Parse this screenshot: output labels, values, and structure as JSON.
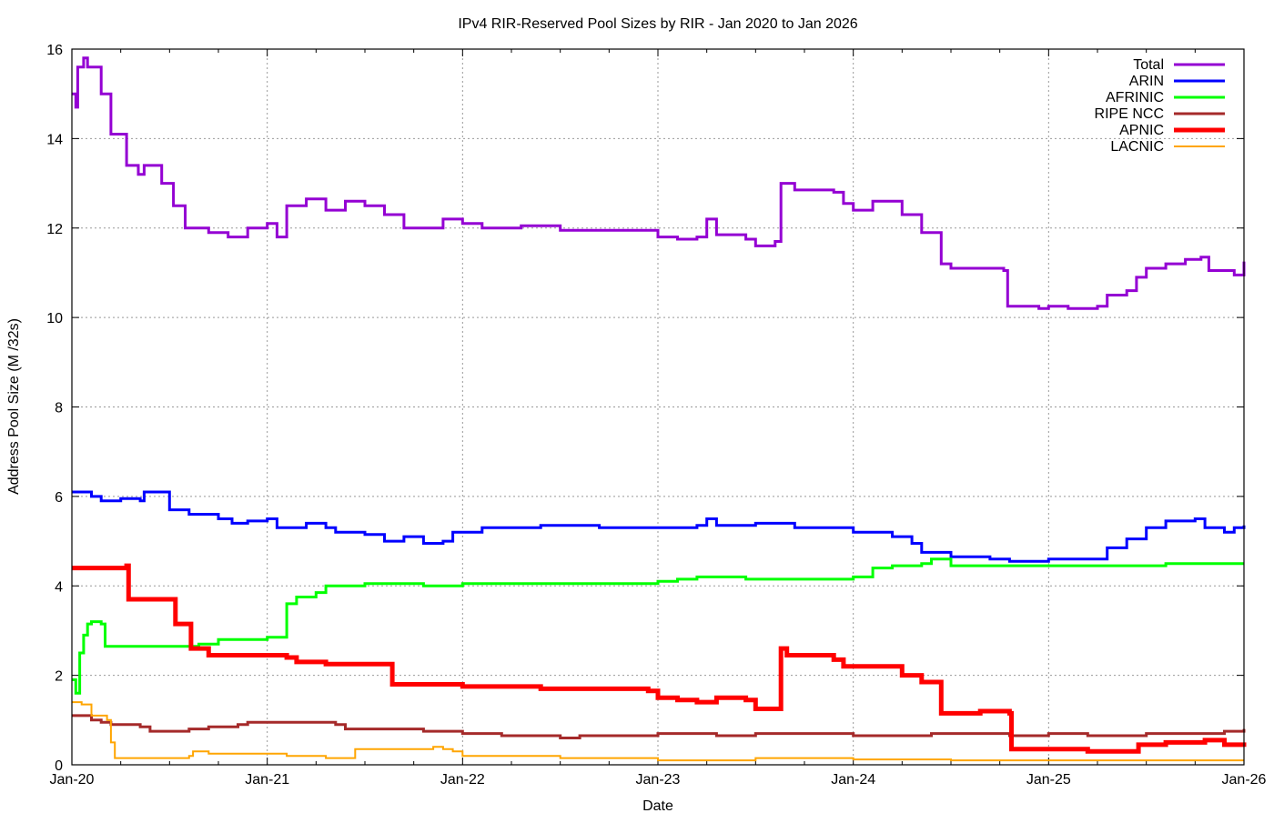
{
  "chart_data": {
    "type": "line",
    "title": "IPv4 RIR-Reserved Pool Sizes by RIR - Jan 2020 to Jan 2026",
    "xlabel": "Date",
    "ylabel": "Address Pool Size (M /32s)",
    "x_unit": "years since Jan 2020",
    "xlim": [
      0,
      6
    ],
    "ylim": [
      0,
      16
    ],
    "x_ticks": [
      {
        "value": 0,
        "label": "Jan-20"
      },
      {
        "value": 1,
        "label": "Jan-21"
      },
      {
        "value": 2,
        "label": "Jan-22"
      },
      {
        "value": 3,
        "label": "Jan-23"
      },
      {
        "value": 4,
        "label": "Jan-24"
      },
      {
        "value": 5,
        "label": "Jan-25"
      },
      {
        "value": 6,
        "label": "Jan-26"
      }
    ],
    "y_ticks": [
      0,
      2,
      4,
      6,
      8,
      10,
      12,
      14,
      16
    ],
    "grid": true,
    "legend_position": "top-right",
    "series": [
      {
        "name": "Total",
        "color": "#9400d3",
        "width": 3,
        "points": [
          [
            0,
            15.0
          ],
          [
            0.02,
            14.7
          ],
          [
            0.03,
            15.6
          ],
          [
            0.06,
            15.8
          ],
          [
            0.08,
            15.6
          ],
          [
            0.15,
            15.0
          ],
          [
            0.2,
            14.1
          ],
          [
            0.28,
            13.4
          ],
          [
            0.34,
            13.2
          ],
          [
            0.37,
            13.4
          ],
          [
            0.46,
            13.0
          ],
          [
            0.52,
            12.5
          ],
          [
            0.58,
            12.0
          ],
          [
            0.7,
            11.9
          ],
          [
            0.8,
            11.8
          ],
          [
            0.9,
            12.0
          ],
          [
            1.0,
            12.1
          ],
          [
            1.05,
            11.8
          ],
          [
            1.1,
            12.5
          ],
          [
            1.2,
            12.65
          ],
          [
            1.3,
            12.4
          ],
          [
            1.4,
            12.6
          ],
          [
            1.5,
            12.5
          ],
          [
            1.6,
            12.3
          ],
          [
            1.7,
            12.0
          ],
          [
            1.85,
            12.0
          ],
          [
            1.9,
            12.2
          ],
          [
            2.0,
            12.1
          ],
          [
            2.1,
            12.0
          ],
          [
            2.3,
            12.05
          ],
          [
            2.5,
            11.95
          ],
          [
            2.7,
            11.95
          ],
          [
            2.9,
            11.95
          ],
          [
            3.0,
            11.8
          ],
          [
            3.1,
            11.75
          ],
          [
            3.2,
            11.8
          ],
          [
            3.25,
            12.2
          ],
          [
            3.3,
            11.85
          ],
          [
            3.45,
            11.75
          ],
          [
            3.5,
            11.6
          ],
          [
            3.6,
            11.7
          ],
          [
            3.63,
            13.0
          ],
          [
            3.7,
            12.85
          ],
          [
            3.9,
            12.8
          ],
          [
            3.95,
            12.55
          ],
          [
            4.0,
            12.4
          ],
          [
            4.1,
            12.6
          ],
          [
            4.25,
            12.3
          ],
          [
            4.35,
            11.9
          ],
          [
            4.45,
            11.2
          ],
          [
            4.5,
            11.1
          ],
          [
            4.65,
            11.1
          ],
          [
            4.77,
            11.05
          ],
          [
            4.79,
            10.25
          ],
          [
            4.95,
            10.2
          ],
          [
            5.0,
            10.25
          ],
          [
            5.1,
            10.2
          ],
          [
            5.25,
            10.25
          ],
          [
            5.3,
            10.5
          ],
          [
            5.4,
            10.6
          ],
          [
            5.45,
            10.9
          ],
          [
            5.5,
            11.1
          ],
          [
            5.6,
            11.2
          ],
          [
            5.7,
            11.3
          ],
          [
            5.78,
            11.35
          ],
          [
            5.82,
            11.05
          ],
          [
            5.95,
            10.95
          ],
          [
            6.0,
            11.25
          ]
        ]
      },
      {
        "name": "ARIN",
        "color": "#0000ff",
        "width": 3,
        "points": [
          [
            0,
            6.1
          ],
          [
            0.1,
            6.0
          ],
          [
            0.15,
            5.9
          ],
          [
            0.25,
            5.95
          ],
          [
            0.35,
            5.9
          ],
          [
            0.37,
            6.1
          ],
          [
            0.47,
            6.1
          ],
          [
            0.5,
            5.7
          ],
          [
            0.6,
            5.6
          ],
          [
            0.75,
            5.5
          ],
          [
            0.82,
            5.4
          ],
          [
            0.9,
            5.45
          ],
          [
            1.0,
            5.5
          ],
          [
            1.05,
            5.3
          ],
          [
            1.2,
            5.4
          ],
          [
            1.3,
            5.3
          ],
          [
            1.35,
            5.2
          ],
          [
            1.5,
            5.15
          ],
          [
            1.6,
            5.0
          ],
          [
            1.7,
            5.1
          ],
          [
            1.8,
            4.95
          ],
          [
            1.9,
            5.0
          ],
          [
            1.95,
            5.2
          ],
          [
            2.1,
            5.3
          ],
          [
            2.4,
            5.35
          ],
          [
            2.7,
            5.3
          ],
          [
            3.0,
            5.3
          ],
          [
            3.2,
            5.35
          ],
          [
            3.25,
            5.5
          ],
          [
            3.3,
            5.35
          ],
          [
            3.5,
            5.4
          ],
          [
            3.7,
            5.3
          ],
          [
            3.9,
            5.3
          ],
          [
            4.0,
            5.2
          ],
          [
            4.2,
            5.1
          ],
          [
            4.3,
            4.95
          ],
          [
            4.35,
            4.75
          ],
          [
            4.5,
            4.65
          ],
          [
            4.7,
            4.6
          ],
          [
            4.8,
            4.55
          ],
          [
            5.0,
            4.6
          ],
          [
            5.25,
            4.6
          ],
          [
            5.3,
            4.85
          ],
          [
            5.4,
            5.05
          ],
          [
            5.5,
            5.3
          ],
          [
            5.6,
            5.45
          ],
          [
            5.75,
            5.5
          ],
          [
            5.8,
            5.3
          ],
          [
            5.9,
            5.2
          ],
          [
            5.95,
            5.3
          ],
          [
            6.0,
            5.35
          ]
        ]
      },
      {
        "name": "AFRINIC",
        "color": "#00ff00",
        "width": 3,
        "points": [
          [
            0,
            1.9
          ],
          [
            0.02,
            1.6
          ],
          [
            0.04,
            2.5
          ],
          [
            0.06,
            2.9
          ],
          [
            0.08,
            3.15
          ],
          [
            0.1,
            3.2
          ],
          [
            0.15,
            3.15
          ],
          [
            0.17,
            2.65
          ],
          [
            0.5,
            2.65
          ],
          [
            0.65,
            2.7
          ],
          [
            0.75,
            2.8
          ],
          [
            0.9,
            2.8
          ],
          [
            1.0,
            2.85
          ],
          [
            1.1,
            3.6
          ],
          [
            1.15,
            3.75
          ],
          [
            1.25,
            3.85
          ],
          [
            1.3,
            4.0
          ],
          [
            1.5,
            4.05
          ],
          [
            1.8,
            4.0
          ],
          [
            2.0,
            4.05
          ],
          [
            2.9,
            4.05
          ],
          [
            3.0,
            4.1
          ],
          [
            3.1,
            4.15
          ],
          [
            3.2,
            4.2
          ],
          [
            3.45,
            4.15
          ],
          [
            3.9,
            4.15
          ],
          [
            4.0,
            4.2
          ],
          [
            4.1,
            4.4
          ],
          [
            4.2,
            4.45
          ],
          [
            4.35,
            4.5
          ],
          [
            4.4,
            4.6
          ],
          [
            4.5,
            4.45
          ],
          [
            5.3,
            4.45
          ],
          [
            5.6,
            4.5
          ],
          [
            6.0,
            4.5
          ]
        ]
      },
      {
        "name": "RIPE NCC",
        "color": "#a52a2a",
        "width": 3,
        "points": [
          [
            0,
            1.1
          ],
          [
            0.1,
            1.0
          ],
          [
            0.15,
            0.95
          ],
          [
            0.2,
            0.9
          ],
          [
            0.35,
            0.85
          ],
          [
            0.4,
            0.75
          ],
          [
            0.55,
            0.75
          ],
          [
            0.6,
            0.8
          ],
          [
            0.7,
            0.85
          ],
          [
            0.85,
            0.9
          ],
          [
            0.9,
            0.95
          ],
          [
            1.2,
            0.95
          ],
          [
            1.35,
            0.9
          ],
          [
            1.4,
            0.8
          ],
          [
            1.6,
            0.8
          ],
          [
            1.8,
            0.75
          ],
          [
            2.0,
            0.7
          ],
          [
            2.2,
            0.65
          ],
          [
            2.5,
            0.6
          ],
          [
            2.6,
            0.65
          ],
          [
            3.0,
            0.7
          ],
          [
            3.3,
            0.65
          ],
          [
            3.5,
            0.7
          ],
          [
            4.0,
            0.65
          ],
          [
            4.4,
            0.7
          ],
          [
            4.8,
            0.65
          ],
          [
            5.0,
            0.7
          ],
          [
            5.2,
            0.65
          ],
          [
            5.5,
            0.7
          ],
          [
            5.9,
            0.75
          ],
          [
            6.0,
            0.8
          ]
        ]
      },
      {
        "name": "APNIC",
        "color": "#ff0000",
        "width": 5,
        "points": [
          [
            0,
            4.4
          ],
          [
            0.28,
            4.45
          ],
          [
            0.29,
            3.7
          ],
          [
            0.52,
            3.7
          ],
          [
            0.53,
            3.15
          ],
          [
            0.6,
            3.15
          ],
          [
            0.61,
            2.6
          ],
          [
            0.7,
            2.45
          ],
          [
            1.0,
            2.45
          ],
          [
            1.1,
            2.4
          ],
          [
            1.15,
            2.3
          ],
          [
            1.3,
            2.25
          ],
          [
            1.63,
            2.25
          ],
          [
            1.64,
            1.8
          ],
          [
            1.9,
            1.8
          ],
          [
            2.0,
            1.75
          ],
          [
            2.4,
            1.7
          ],
          [
            2.9,
            1.7
          ],
          [
            2.95,
            1.65
          ],
          [
            3.0,
            1.5
          ],
          [
            3.1,
            1.45
          ],
          [
            3.2,
            1.4
          ],
          [
            3.3,
            1.5
          ],
          [
            3.45,
            1.45
          ],
          [
            3.5,
            1.25
          ],
          [
            3.62,
            1.25
          ],
          [
            3.63,
            2.6
          ],
          [
            3.66,
            2.45
          ],
          [
            3.85,
            2.45
          ],
          [
            3.9,
            2.35
          ],
          [
            3.95,
            2.2
          ],
          [
            4.2,
            2.2
          ],
          [
            4.25,
            2.0
          ],
          [
            4.35,
            1.85
          ],
          [
            4.45,
            1.15
          ],
          [
            4.6,
            1.15
          ],
          [
            4.65,
            1.2
          ],
          [
            4.8,
            1.15
          ],
          [
            4.81,
            0.35
          ],
          [
            5.0,
            0.35
          ],
          [
            5.2,
            0.3
          ],
          [
            5.45,
            0.3
          ],
          [
            5.46,
            0.45
          ],
          [
            5.6,
            0.5
          ],
          [
            5.8,
            0.55
          ],
          [
            5.9,
            0.45
          ],
          [
            6.0,
            0.4
          ]
        ]
      },
      {
        "name": "LACNIC",
        "color": "#ffa500",
        "width": 2,
        "points": [
          [
            0,
            1.4
          ],
          [
            0.05,
            1.35
          ],
          [
            0.1,
            1.1
          ],
          [
            0.15,
            1.1
          ],
          [
            0.18,
            1.0
          ],
          [
            0.2,
            0.5
          ],
          [
            0.22,
            0.15
          ],
          [
            0.6,
            0.2
          ],
          [
            0.62,
            0.3
          ],
          [
            0.7,
            0.25
          ],
          [
            1.0,
            0.25
          ],
          [
            1.1,
            0.2
          ],
          [
            1.3,
            0.15
          ],
          [
            1.42,
            0.15
          ],
          [
            1.45,
            0.35
          ],
          [
            1.8,
            0.35
          ],
          [
            1.85,
            0.4
          ],
          [
            1.9,
            0.35
          ],
          [
            1.95,
            0.3
          ],
          [
            2.0,
            0.2
          ],
          [
            2.3,
            0.2
          ],
          [
            2.5,
            0.15
          ],
          [
            3.0,
            0.1
          ],
          [
            3.5,
            0.15
          ],
          [
            4.0,
            0.12
          ],
          [
            4.5,
            0.1
          ],
          [
            6.0,
            0.1
          ]
        ]
      }
    ]
  }
}
